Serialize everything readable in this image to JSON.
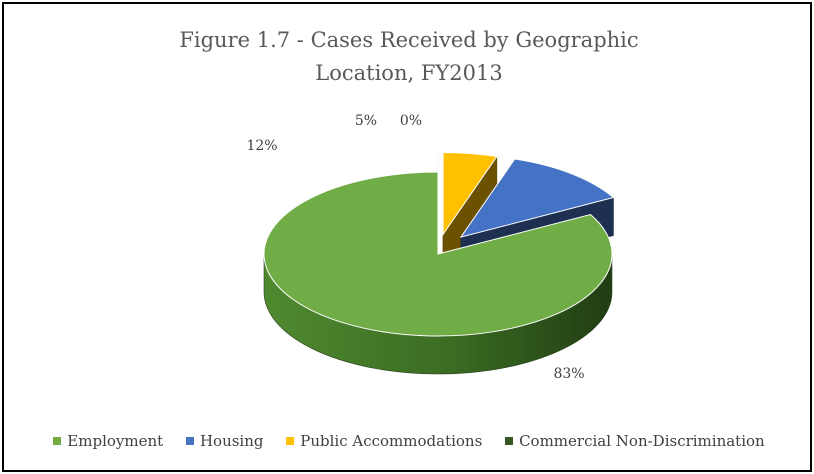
{
  "chart_data": {
    "type": "pie",
    "title_lines": [
      "Figure 1.7 - Cases Received by Geographic",
      "Location, FY2013"
    ],
    "categories": [
      "Employment",
      "Housing",
      "Public Accommodations",
      "Commercial Non-Discrimination"
    ],
    "values": [
      83,
      12,
      5,
      0
    ],
    "data_labels": [
      "83%",
      "12%",
      "5%",
      "0%"
    ],
    "colors": [
      "#70AD47",
      "#4472C4",
      "#FFC000",
      "#375623"
    ],
    "legend_position": "bottom",
    "style": "3d-exploded"
  }
}
